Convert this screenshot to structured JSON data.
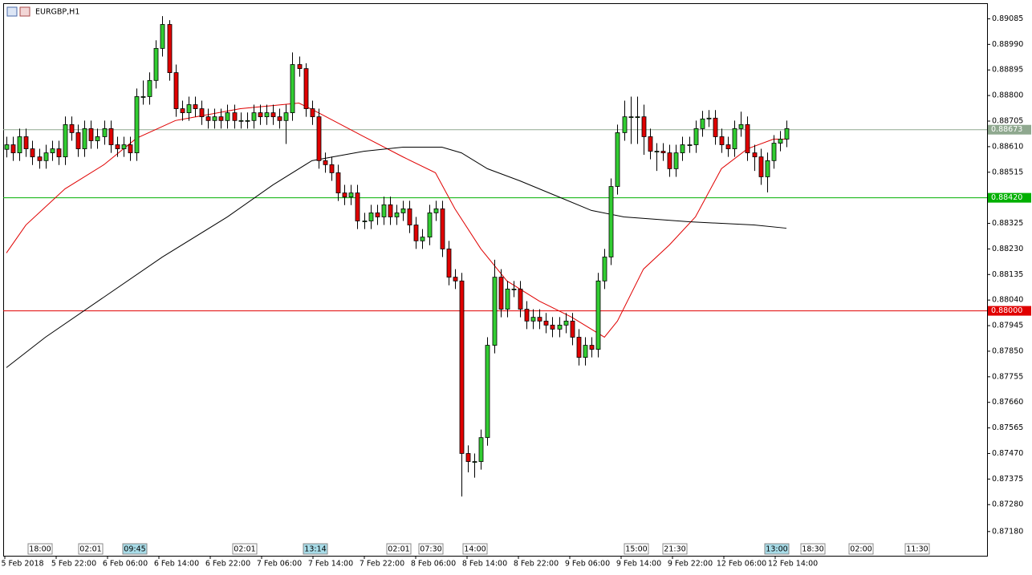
{
  "chart_data": {
    "type": "candlestick",
    "title": "EURGBP,H1",
    "bull_color": "#32cd32",
    "bear_color": "#e00000",
    "wick_color": "#000000",
    "ylim": [
      0.8709,
      0.8914
    ],
    "yticks": [
      0.89085,
      {
        "value": 0.8899,
        "label": "0.88990"
      },
      0.88895,
      {
        "value": 0.888,
        "label": "0.88800"
      },
      0.88705,
      {
        "value": 0.8861,
        "label": "0.88610"
      },
      0.88515,
      {
        "value": 0.8842,
        "label": "0.88420"
      },
      0.88325,
      {
        "value": 0.8823,
        "label": "0.88230"
      },
      0.88135,
      {
        "value": 0.8804,
        "label": "0.88040"
      },
      0.87945,
      {
        "value": 0.8785,
        "label": "0.87850"
      },
      0.87755,
      {
        "value": 0.8766,
        "label": "0.87660"
      },
      0.87565,
      {
        "value": 0.8747,
        "label": "0.87470"
      },
      0.87375,
      {
        "value": 0.8728,
        "label": "0.87280"
      },
      {
        "value": 0.8718,
        "label": "0.87180"
      }
    ],
    "xtick_labels": [
      "5 Feb 2018",
      "5 Feb 22:00",
      "6 Feb 06:00",
      "6 Feb 14:00",
      "6 Feb 22:00",
      "7 Feb 06:00",
      "7 Feb 14:00",
      "7 Feb 22:00",
      "8 Feb 06:00",
      "8 Feb 14:00",
      "8 Feb 22:00",
      "9 Feb 06:00",
      "9 Feb 14:00",
      "9 Feb 22:00",
      "12 Feb 06:00",
      "12 Feb 14:00"
    ],
    "time_markers": [
      {
        "label": "18:00",
        "highlight": false
      },
      {
        "label": "02:01",
        "highlight": false
      },
      {
        "label": "09:45",
        "highlight": true
      },
      {
        "label": "02:01",
        "highlight": false
      },
      {
        "label": "13:14",
        "highlight": true
      },
      {
        "label": "02:01",
        "highlight": false
      },
      {
        "label": "07:30",
        "highlight": false
      },
      {
        "label": "14:00",
        "highlight": false
      },
      {
        "label": "15:00",
        "highlight": false
      },
      {
        "label": "21:30",
        "highlight": false
      },
      {
        "label": "13:00",
        "highlight": true
      },
      {
        "label": "18:30",
        "highlight": false
      },
      {
        "label": "02:00",
        "highlight": false
      },
      {
        "label": "11:30",
        "highlight": false
      }
    ],
    "levels": [
      {
        "value": 0.88673,
        "label": "0.88673",
        "color": "#8fa88f"
      },
      {
        "value": 0.8842,
        "label": "0.88420",
        "color": "#00b000"
      },
      {
        "value": 0.88,
        "label": "0.88000",
        "color": "#e00000"
      }
    ],
    "open": [
      0.886,
      0.88617,
      0.88587,
      0.88647,
      0.88602,
      0.88572,
      0.88558,
      0.88587,
      0.88602,
      0.88572,
      0.88692,
      0.88662,
      0.88602,
      0.88677,
      0.88632,
      0.88647,
      0.88677,
      0.88617,
      0.88602,
      0.88617,
      0.88587,
      0.88796,
      0.88796,
      0.88856,
      0.88975,
      0.89064,
      0.88885,
      0.88751,
      0.88736,
      0.88766,
      0.88751,
      0.88721,
      0.88707,
      0.88721,
      0.88707,
      0.88736,
      0.88707,
      0.88707,
      0.88707,
      0.88736,
      0.88721,
      0.88736,
      0.88721,
      0.88707,
      0.88736,
      0.88915,
      0.889,
      0.88751,
      0.88721,
      0.88558,
      0.88543,
      0.88513,
      0.88438,
      0.88423,
      0.88438,
      0.88334,
      0.88334,
      0.88364,
      0.88349,
      0.88394,
      0.88349,
      0.88364,
      0.88379,
      0.88319,
      0.8826,
      0.88274,
      0.88364,
      0.88379,
      0.8823,
      0.88125,
      0.88111,
      0.8747,
      0.8744,
      0.8744,
      0.87529,
      0.87872,
      0.88125,
      0.88006,
      0.88081,
      0.88081,
      0.88006,
      0.87962,
      0.87976,
      0.87962,
      0.87947,
      0.87932,
      0.87947,
      0.87962,
      0.87902,
      0.87827,
      0.87872,
      0.87857,
      0.88111,
      0.882,
      0.88462,
      0.88662,
      0.88721,
      0.88721,
      0.88721,
      0.88647,
      0.88593,
      0.88593,
      0.88587,
      0.88528,
      0.88587,
      0.88617,
      0.88617,
      0.88677,
      0.88713,
      0.88716,
      0.88647,
      0.88617,
      0.88602,
      0.88677,
      0.88692,
      0.88587,
      0.88572,
      0.88498,
      0.88558,
      0.88623,
      0.88638
    ],
    "high": [
      0.88647,
      0.88647,
      0.88677,
      0.88677,
      0.88632,
      0.88602,
      0.88617,
      0.88632,
      0.88632,
      0.88722,
      0.88722,
      0.88692,
      0.88707,
      0.88707,
      0.88677,
      0.88707,
      0.88707,
      0.88647,
      0.88647,
      0.88647,
      0.88826,
      0.88856,
      0.88886,
      0.89005,
      0.89095,
      0.8908,
      0.88915,
      0.88781,
      0.88796,
      0.88796,
      0.88781,
      0.88751,
      0.88751,
      0.88751,
      0.88766,
      0.88766,
      0.88737,
      0.88737,
      0.88766,
      0.88766,
      0.88766,
      0.88766,
      0.88751,
      0.88766,
      0.8896,
      0.88945,
      0.8892,
      0.88781,
      0.88751,
      0.88588,
      0.88573,
      0.88543,
      0.88468,
      0.88468,
      0.88468,
      0.88364,
      0.88394,
      0.88394,
      0.88424,
      0.88424,
      0.88394,
      0.88409,
      0.88409,
      0.88349,
      0.88304,
      0.88394,
      0.88409,
      0.88409,
      0.8826,
      0.88155,
      0.88141,
      0.875,
      0.8747,
      0.87559,
      0.87902,
      0.8819,
      0.88155,
      0.88111,
      0.88111,
      0.88111,
      0.88036,
      0.88006,
      0.88006,
      0.87992,
      0.87977,
      0.87977,
      0.87992,
      0.87992,
      0.87932,
      0.87902,
      0.87902,
      0.88141,
      0.8823,
      0.88492,
      0.88692,
      0.88781,
      0.88796,
      0.88796,
      0.88766,
      0.88677,
      0.88623,
      0.88623,
      0.88617,
      0.88617,
      0.88647,
      0.88647,
      0.88707,
      0.88743,
      0.88746,
      0.88746,
      0.88677,
      0.88647,
      0.88707,
      0.8874,
      0.88722,
      0.88617,
      0.88602,
      0.88588,
      0.88653,
      0.88668,
      0.88707
    ],
    "low": [
      0.8857,
      0.88557,
      0.88557,
      0.88572,
      0.88542,
      0.88528,
      0.88528,
      0.88557,
      0.88542,
      0.88542,
      0.88632,
      0.88572,
      0.88572,
      0.88602,
      0.88602,
      0.88617,
      0.88587,
      0.88572,
      0.88572,
      0.88557,
      0.88557,
      0.88766,
      0.88766,
      0.88826,
      0.88945,
      0.88855,
      0.88721,
      0.88706,
      0.88706,
      0.88721,
      0.88691,
      0.88677,
      0.88677,
      0.88677,
      0.88677,
      0.88677,
      0.88677,
      0.88677,
      0.88677,
      0.88691,
      0.88691,
      0.88691,
      0.88677,
      0.8862,
      0.88706,
      0.8887,
      0.88721,
      0.88691,
      0.88528,
      0.88513,
      0.88483,
      0.88408,
      0.88393,
      0.88393,
      0.88304,
      0.88304,
      0.88304,
      0.88319,
      0.88319,
      0.88319,
      0.88319,
      0.88334,
      0.88289,
      0.8823,
      0.8823,
      0.88244,
      0.88334,
      0.882,
      0.88095,
      0.88081,
      0.8731,
      0.874,
      0.8738,
      0.8741,
      0.87499,
      0.87842,
      0.87976,
      0.87976,
      0.88051,
      0.87976,
      0.87932,
      0.87932,
      0.87932,
      0.87917,
      0.87902,
      0.87902,
      0.87917,
      0.87872,
      0.87797,
      0.87797,
      0.87827,
      0.87827,
      0.88081,
      0.8817,
      0.88432,
      0.88632,
      0.8862,
      0.8862,
      0.8858,
      0.88563,
      0.8852,
      0.88557,
      0.88498,
      0.88498,
      0.88557,
      0.88587,
      0.88587,
      0.88647,
      0.88683,
      0.88617,
      0.88587,
      0.88572,
      0.88572,
      0.88647,
      0.88557,
      0.8852,
      0.88468,
      0.8844,
      0.88528,
      0.88593,
      0.88608
    ],
    "close": [
      0.88617,
      0.88587,
      0.88647,
      0.88602,
      0.88572,
      0.88558,
      0.88587,
      0.88602,
      0.88572,
      0.88692,
      0.88662,
      0.88602,
      0.88677,
      0.88632,
      0.88647,
      0.88677,
      0.88617,
      0.88602,
      0.88617,
      0.88587,
      0.88796,
      0.88796,
      0.88856,
      0.88975,
      0.89064,
      0.88885,
      0.88751,
      0.88736,
      0.88766,
      0.88751,
      0.88721,
      0.88707,
      0.88721,
      0.88707,
      0.88736,
      0.88707,
      0.88707,
      0.88707,
      0.88736,
      0.88721,
      0.88736,
      0.88721,
      0.88707,
      0.88736,
      0.88915,
      0.889,
      0.88751,
      0.88721,
      0.88558,
      0.88543,
      0.88513,
      0.88438,
      0.88423,
      0.88438,
      0.88334,
      0.88334,
      0.88364,
      0.88349,
      0.88394,
      0.88349,
      0.88364,
      0.88379,
      0.88319,
      0.8826,
      0.88274,
      0.88364,
      0.88379,
      0.8823,
      0.88125,
      0.88111,
      0.8747,
      0.8744,
      0.8744,
      0.87529,
      0.87872,
      0.88125,
      0.88006,
      0.88081,
      0.88081,
      0.88006,
      0.87962,
      0.87976,
      0.87962,
      0.87947,
      0.87932,
      0.87947,
      0.87962,
      0.87902,
      0.87827,
      0.87872,
      0.87857,
      0.88111,
      0.882,
      0.88462,
      0.88662,
      0.88721,
      0.88721,
      0.88721,
      0.88647,
      0.88593,
      0.88593,
      0.88587,
      0.88528,
      0.88587,
      0.88617,
      0.88617,
      0.88677,
      0.88713,
      0.88716,
      0.88647,
      0.88617,
      0.88602,
      0.88677,
      0.88692,
      0.88587,
      0.88572,
      0.88498,
      0.88558,
      0.88623,
      0.88638,
      0.88677
    ],
    "overlays": [
      {
        "color": "#e00000",
        "x": [
          0,
          3,
          9,
          15,
          20,
          26,
          36,
          45,
          48,
          55,
          61,
          66,
          69,
          73,
          77,
          82,
          87,
          92,
          94,
          98,
          102,
          106,
          110,
          114,
          118,
          120
        ],
        "values": [
          0.88215,
          0.88319,
          0.88453,
          0.88543,
          0.88641,
          0.88707,
          0.88751,
          0.88772,
          0.88736,
          0.88647,
          0.88572,
          0.88513,
          0.88379,
          0.8823,
          0.88111,
          0.88036,
          0.87976,
          0.87902,
          0.87962,
          0.88155,
          0.88245,
          0.88349,
          0.88528,
          0.88602,
          0.88638,
          0.88638
        ]
      },
      {
        "color": "#000000",
        "x": [
          0,
          6,
          15,
          24,
          34,
          41,
          47,
          55,
          61,
          67,
          70,
          74,
          79,
          85,
          90,
          95,
          105,
          115,
          120
        ],
        "values": [
          0.87789,
          0.87902,
          0.88051,
          0.882,
          0.88349,
          0.88468,
          0.88558,
          0.88593,
          0.88608,
          0.88608,
          0.88587,
          0.88528,
          0.88483,
          0.88423,
          0.88373,
          0.88349,
          0.88331,
          0.88319,
          0.88307
        ]
      }
    ]
  }
}
